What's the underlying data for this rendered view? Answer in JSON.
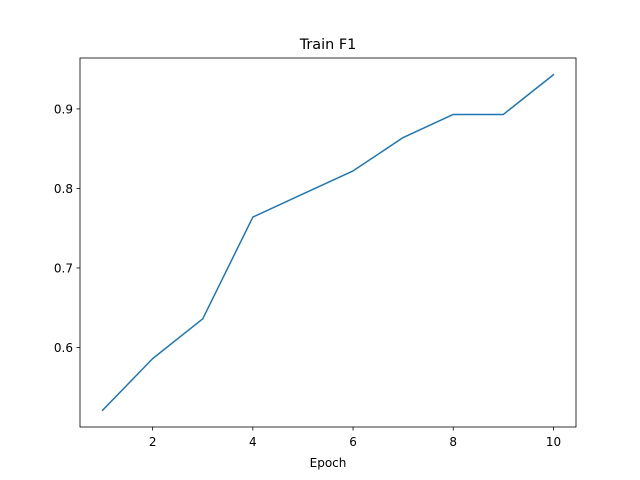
{
  "chart_data": {
    "type": "line",
    "title": "Train F1",
    "xlabel": "Epoch",
    "ylabel": "",
    "x": [
      1,
      2,
      3,
      4,
      5,
      6,
      7,
      8,
      9,
      10
    ],
    "series": [
      {
        "values": [
          0.521,
          0.586,
          0.636,
          0.764,
          0.793,
          0.822,
          0.864,
          0.893,
          0.893,
          0.943
        ]
      }
    ],
    "xlim": [
      0.55,
      10.45
    ],
    "ylim": [
      0.5,
      0.964
    ],
    "xticks": [
      2,
      4,
      6,
      8,
      10
    ],
    "yticks": [
      0.6,
      0.7,
      0.8,
      0.9
    ],
    "xtick_labels": [
      "2",
      "4",
      "6",
      "8",
      "10"
    ],
    "ytick_labels": [
      "0.6",
      "0.7",
      "0.8",
      "0.9"
    ],
    "grid": false,
    "line_color": "#1f77b4"
  }
}
